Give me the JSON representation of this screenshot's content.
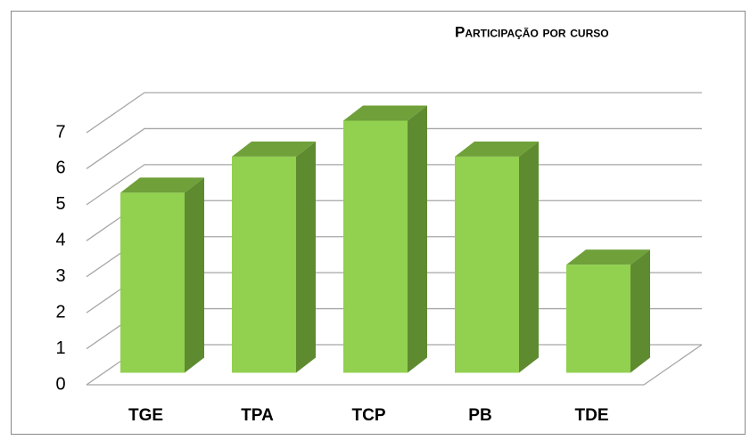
{
  "chart_data": {
    "type": "bar3d",
    "title": "Participação por curso",
    "categories": [
      "TGE",
      "TPA",
      "TCP",
      "PB",
      "TDE"
    ],
    "values": [
      5,
      6,
      7,
      6,
      3
    ],
    "color": "#92d050",
    "ylim": [
      0,
      7
    ],
    "yticks": [
      0,
      1,
      2,
      3,
      4,
      5,
      6,
      7
    ],
    "grid": true
  }
}
